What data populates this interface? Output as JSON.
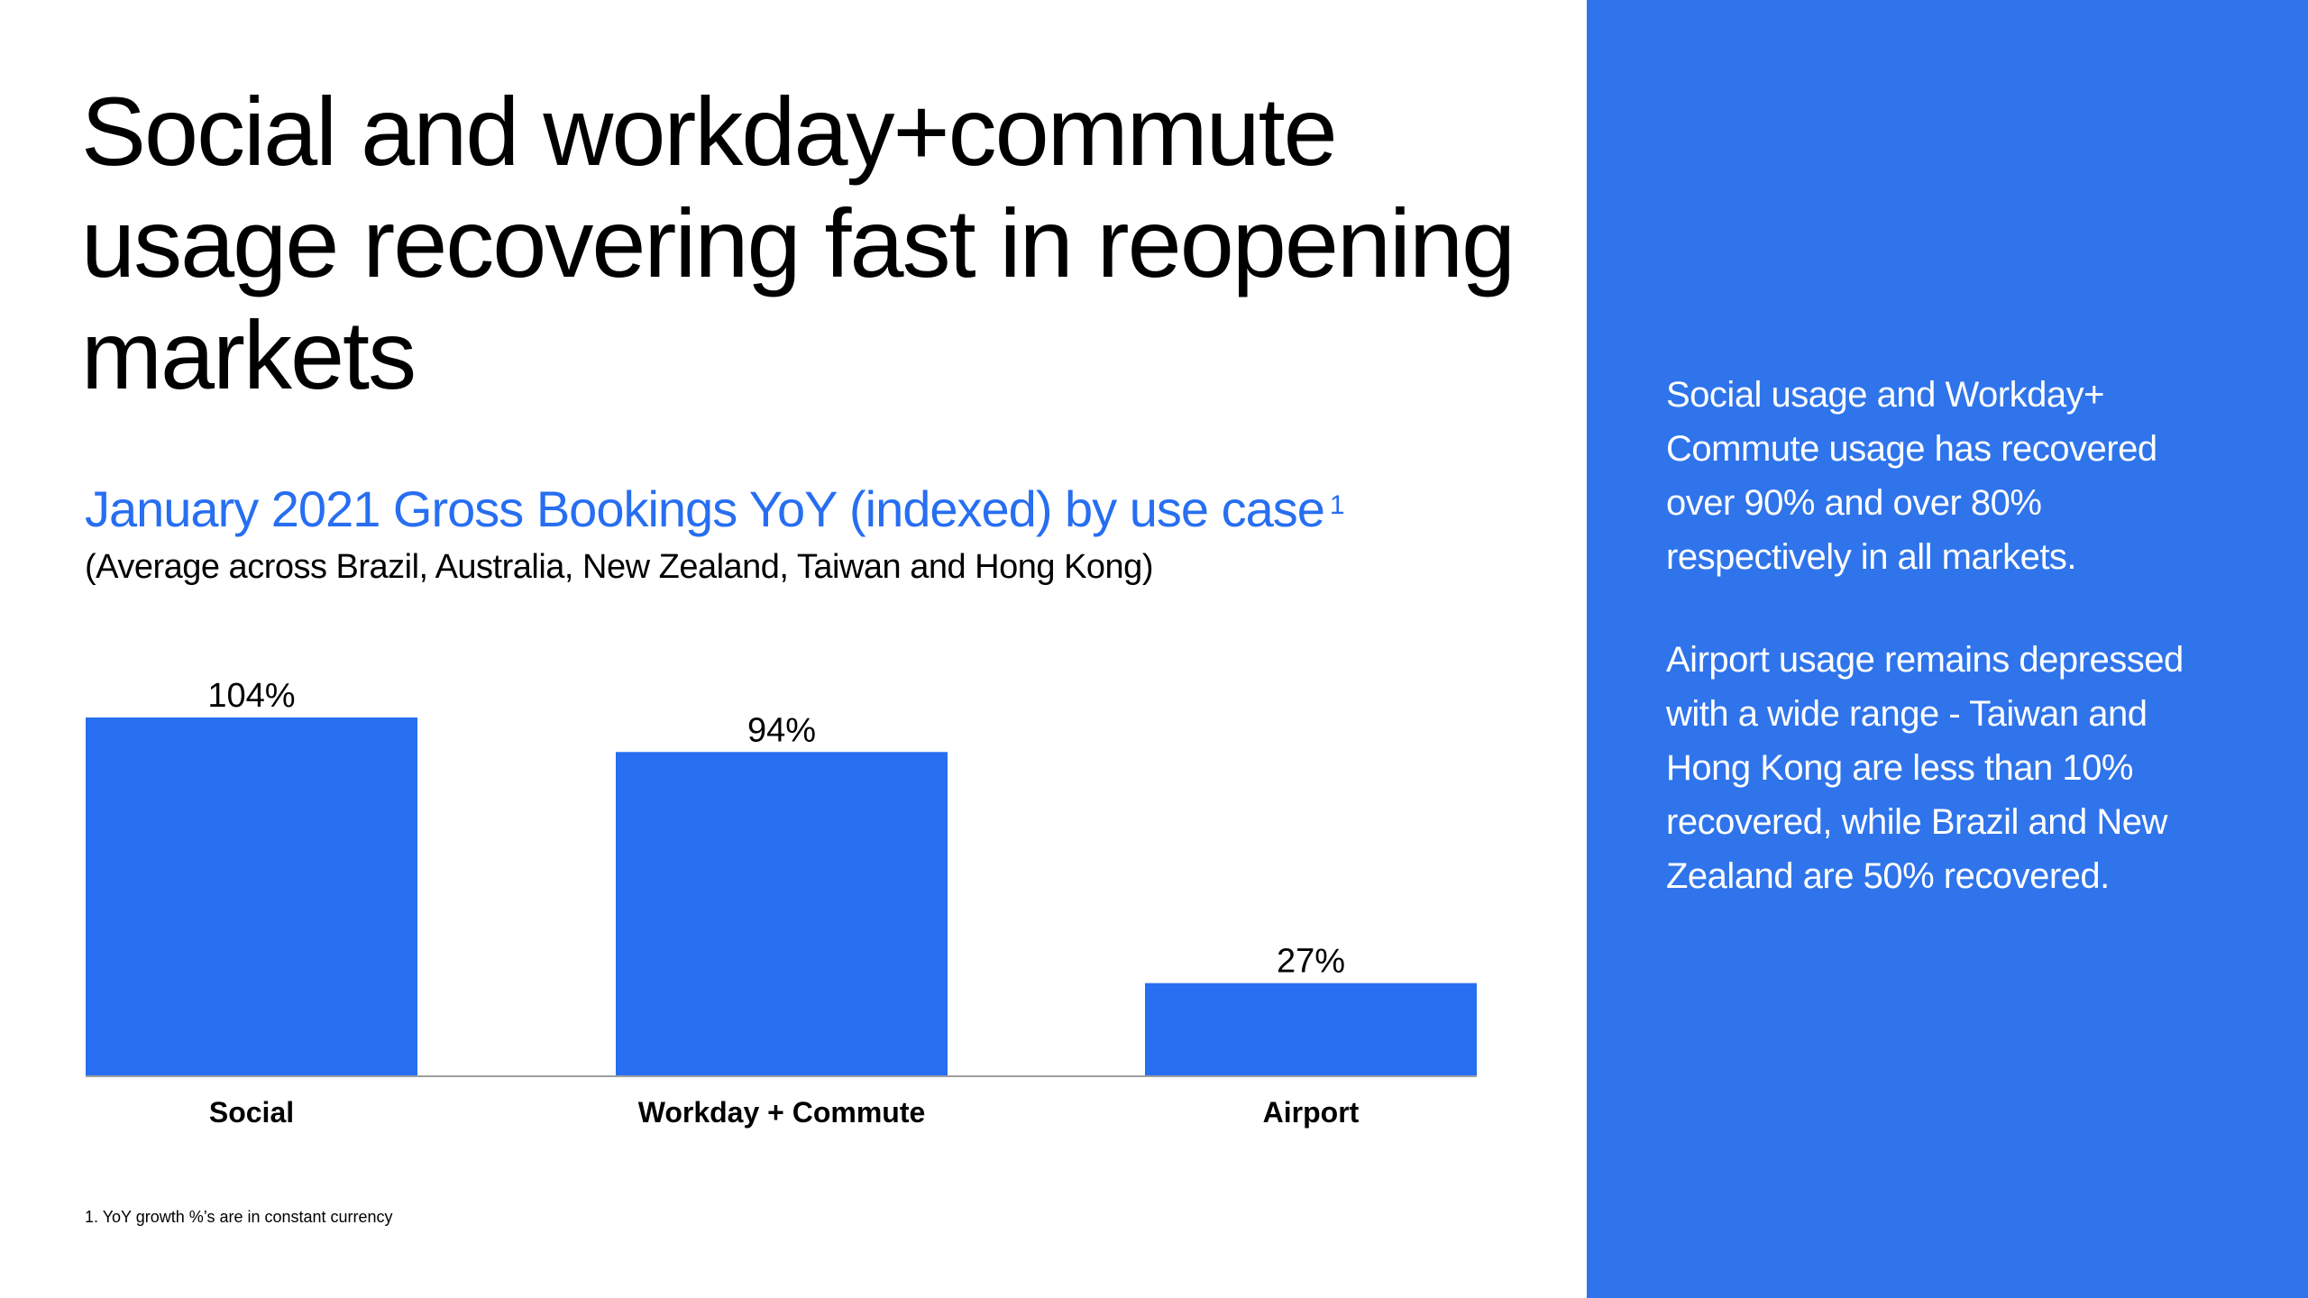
{
  "slide": {
    "headline": "Social and workday+commute usage recovering fast in reopening markets",
    "subtitle": "January 2021 Gross Bookings YoY (indexed) by use case",
    "subtitle_footnote_marker": "1",
    "subnote": "(Average across Brazil, Australia, New Zealand, Taiwan and Hong Kong)",
    "footnote": "1.  YoY growth %’s are in constant currency"
  },
  "sidebar": {
    "paragraph_1": "Social usage and Workday+ Commute usage has recovered over 90% and over 80% respectively in all markets.",
    "paragraph_2": "Airport usage remains depressed with a wide range - Taiwan and Hong Kong are less than 10% recovered, while Brazil and New Zealand are 50% recovered."
  },
  "colors": {
    "bar": "#276EF1",
    "accent_text": "#276EF1",
    "sidebar_bg": "#2F74EB",
    "axis": "#9E9E9E"
  },
  "chart_data": {
    "type": "bar",
    "categories": [
      "Social",
      "Workday + Commute",
      "Airport"
    ],
    "values": [
      104,
      94,
      27
    ],
    "value_labels": [
      "104%",
      "94%",
      "27%"
    ],
    "unit": "%",
    "ylim": [
      0,
      104
    ],
    "grid": false,
    "legend": "none"
  }
}
